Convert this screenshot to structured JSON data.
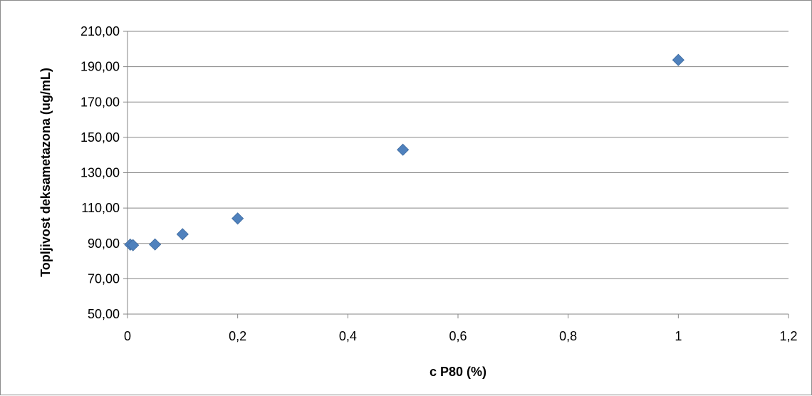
{
  "chart_data": {
    "type": "scatter",
    "title": "",
    "xlabel": "c P80 (%)",
    "ylabel": "Topljivost deksametazona (ug/mL)",
    "xlim": [
      0,
      1.2
    ],
    "ylim": [
      50,
      210
    ],
    "x_ticks": [
      0,
      0.2,
      0.4,
      0.6,
      0.8,
      1,
      1.2
    ],
    "x_tick_labels": [
      "0",
      "0,2",
      "0,4",
      "0,6",
      "0,8",
      "1",
      "1,2"
    ],
    "y_ticks": [
      50,
      70,
      90,
      110,
      130,
      150,
      170,
      190,
      210
    ],
    "y_tick_labels": [
      "50,00",
      "70,00",
      "90,00",
      "110,00",
      "130,00",
      "150,00",
      "170,00",
      "190,00",
      "210,00"
    ],
    "grid": {
      "horizontal": true,
      "vertical": false
    },
    "legend": "none",
    "marker": "diamond",
    "series": [
      {
        "color": "#4f81bd",
        "points": [
          {
            "x": 0.005,
            "y": 89.3
          },
          {
            "x": 0.01,
            "y": 89.0
          },
          {
            "x": 0.05,
            "y": 89.4
          },
          {
            "x": 0.1,
            "y": 95.2
          },
          {
            "x": 0.2,
            "y": 104.1
          },
          {
            "x": 0.5,
            "y": 143.0
          },
          {
            "x": 1,
            "y": 193.8
          }
        ]
      }
    ]
  }
}
